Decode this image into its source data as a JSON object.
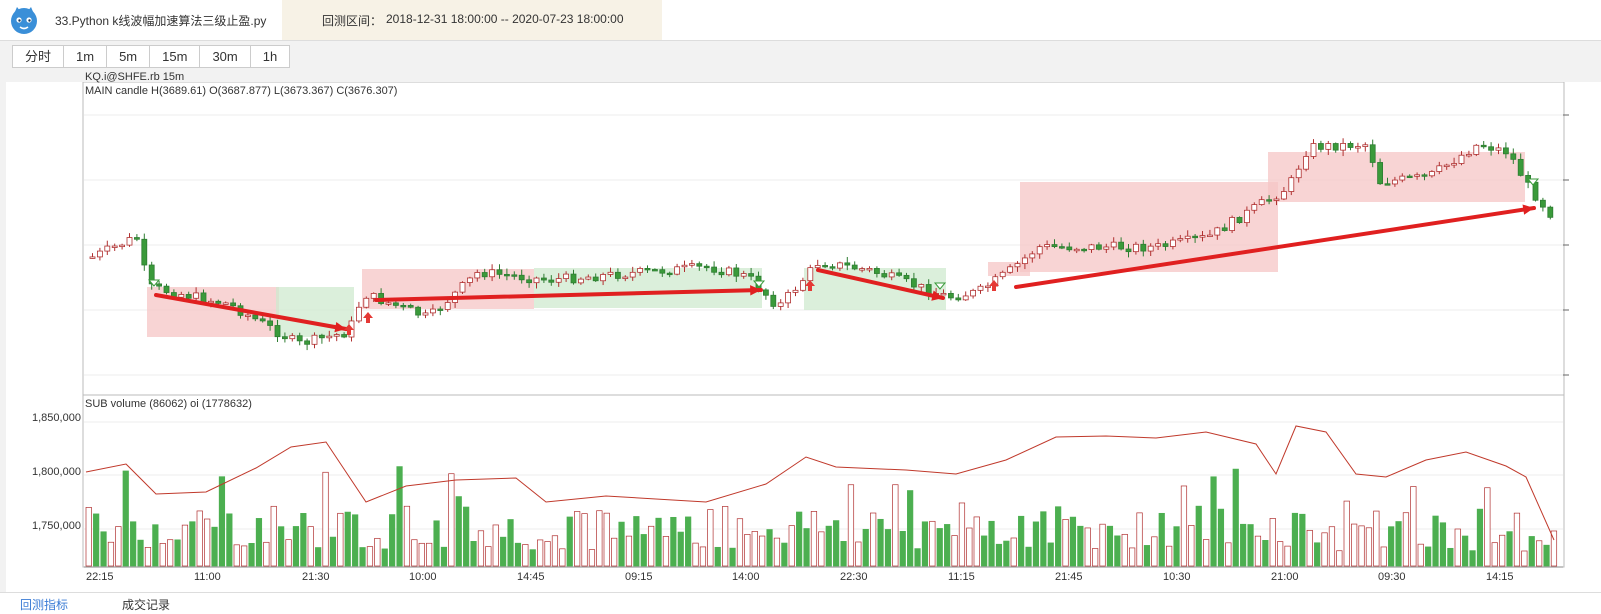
{
  "header": {
    "file_title": "33.Python k线波幅加速算法三级止盈.py",
    "range_label": "回测区间：",
    "range_value": "2018-12-31 18:00:00 -- 2020-07-23 18:00:00"
  },
  "periods": [
    "分时",
    "1m",
    "5m",
    "15m",
    "30m",
    "1h"
  ],
  "main_panel": {
    "symbol": "KQ.i@SHFE.rb 15m",
    "info": "MAIN candle H(3689.61) O(3687.877) L(3673.367) C(3676.307)"
  },
  "sub_panel": {
    "info": "SUB volume (86062) oi (1778632)",
    "y_ticks": [
      "1,850,000",
      "1,800,000",
      "1,750,000"
    ]
  },
  "x_ticks": [
    "22:15",
    "11:00",
    "21:30",
    "10:00",
    "14:45",
    "09:15",
    "14:00",
    "22:30",
    "11:15",
    "21:45",
    "10:30",
    "21:00",
    "09:30",
    "14:15"
  ],
  "bottom_tabs": [
    "回测指标",
    "成交记录"
  ],
  "colors": {
    "up_bar": "#ffffff",
    "up_stroke": "#b03030",
    "down_bar": "#3a9a3a",
    "vol_up": "#ffffff",
    "vol_down": "#4caf50",
    "oi_line": "#c0392b",
    "arrow": "#e02020",
    "zone_red": "#f6c6c6",
    "zone_green": "#cfe9cf"
  },
  "icons": {
    "logo": "cat-logo-icon",
    "buy": "up-arrow-icon",
    "sell": "down-arrow-icon"
  }
}
